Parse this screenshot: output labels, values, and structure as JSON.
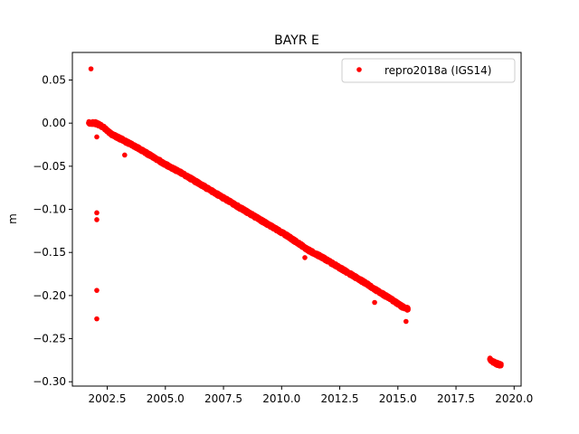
{
  "chart_data": {
    "type": "scatter",
    "title": "BAYR E",
    "xlabel": "",
    "ylabel": "m",
    "xlim": [
      2001.0,
      2020.3
    ],
    "ylim": [
      -0.305,
      0.082
    ],
    "xticks": [
      2002.5,
      2005.0,
      2007.5,
      2010.0,
      2012.5,
      2015.0,
      2017.5,
      2020.0
    ],
    "xtick_labels": [
      "2002.5",
      "2005.0",
      "2007.5",
      "2010.0",
      "2012.5",
      "2015.0",
      "2017.5",
      "2020.0"
    ],
    "yticks": [
      0.05,
      0.0,
      -0.05,
      -0.1,
      -0.15,
      -0.2,
      -0.25,
      -0.3
    ],
    "ytick_labels": [
      "0.05",
      "0.00",
      "−0.05",
      "−0.10",
      "−0.15",
      "−0.20",
      "−0.25",
      "−0.30"
    ],
    "grid": false,
    "legend_position": "top-right",
    "series": [
      {
        "name": "repro2018a (IGS14)",
        "color": "#ff0000",
        "marker": "circle",
        "trend_segments": [
          {
            "x": [
              2001.7,
              2002.0,
              2002.3,
              2002.7,
              2003.2,
              2003.7,
              2004.2,
              2004.7,
              2005.2,
              2005.7,
              2006.2,
              2006.7,
              2007.2,
              2007.7,
              2008.2,
              2008.7,
              2009.2,
              2009.7,
              2010.2,
              2010.7,
              2011.2,
              2011.7,
              2012.2,
              2012.7,
              2013.2,
              2013.7,
              2014.2,
              2014.7,
              2015.2,
              2015.45
            ],
            "y": [
              0.0,
              0.0,
              -0.004,
              -0.013,
              -0.02,
              -0.027,
              -0.035,
              -0.043,
              -0.051,
              -0.058,
              -0.066,
              -0.074,
              -0.082,
              -0.09,
              -0.098,
              -0.106,
              -0.114,
              -0.122,
              -0.13,
              -0.139,
              -0.148,
              -0.155,
              -0.163,
              -0.171,
              -0.179,
              -0.187,
              -0.196,
              -0.204,
              -0.213,
              -0.216
            ]
          },
          {
            "x": [
              2018.95,
              2019.1,
              2019.25,
              2019.45
            ],
            "y": [
              -0.274,
              -0.277,
              -0.279,
              -0.281
            ]
          }
        ],
        "outliers": [
          {
            "x": 2001.8,
            "y": 0.063
          },
          {
            "x": 2002.05,
            "y": -0.016
          },
          {
            "x": 2002.05,
            "y": -0.104
          },
          {
            "x": 2002.05,
            "y": -0.112
          },
          {
            "x": 2002.05,
            "y": -0.194
          },
          {
            "x": 2002.05,
            "y": -0.227
          },
          {
            "x": 2003.25,
            "y": -0.037
          },
          {
            "x": 2014.0,
            "y": -0.208
          },
          {
            "x": 2015.35,
            "y": -0.23
          },
          {
            "x": 2011.0,
            "y": -0.156
          }
        ]
      }
    ]
  }
}
